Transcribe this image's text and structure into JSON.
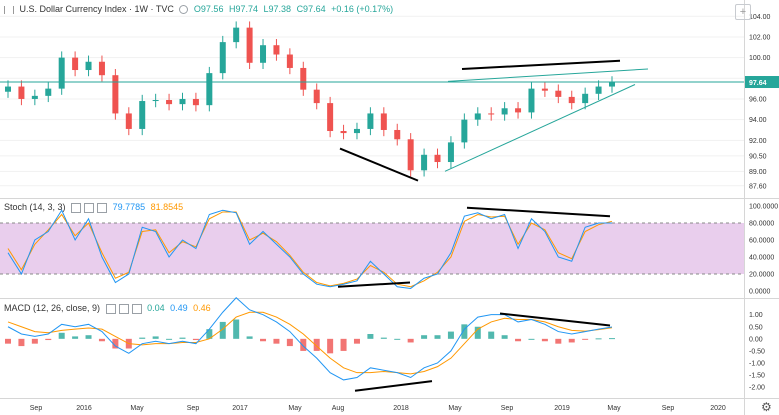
{
  "header": {
    "symbol": "U.S. Dollar Currency Index · 1W · TVC",
    "open": "O97.56",
    "high": "H97.74",
    "low": "L97.38",
    "close": "C97.64",
    "change": "+0.16 (+0.17%)"
  },
  "stoch": {
    "name": "Stoch (14, 3, 3)",
    "k": "79.7785",
    "d": "81.8545"
  },
  "macd": {
    "name": "MACD (12, 26, close, 9)",
    "hist": "0.04",
    "macd": "0.49",
    "signal": "0.46"
  },
  "colors": {
    "up": "#26a69a",
    "down": "#ef5350",
    "k": "#2196f3",
    "d": "#ff9800",
    "band": "#e1bee7",
    "trend_teal": "#26a69a",
    "trend_black": "#000000",
    "price_label": "#26a69a"
  },
  "chart_data": [
    {
      "type": "candlestick",
      "title": "U.S. Dollar Currency Index",
      "price_axis": {
        "ticks": [
          "104.00",
          "102.00",
          "100.00",
          "98.00",
          "96.00",
          "94.00",
          "92.00",
          "90.50",
          "89.00",
          "87.60"
        ],
        "range": [
          87.0,
          104.8
        ]
      },
      "last_price": "97.64",
      "x_ticks": [
        "Sep",
        "2016",
        "May",
        "Sep",
        "2017",
        "May",
        "Aug",
        "2018",
        "May",
        "Sep",
        "2019",
        "May",
        "Sep",
        "2020"
      ],
      "x": [
        "2015-07",
        "2015-08",
        "2015-09",
        "2015-10",
        "2015-11",
        "2015-12",
        "2016-01",
        "2016-02",
        "2016-03",
        "2016-04",
        "2016-05",
        "2016-06",
        "2016-07",
        "2016-08",
        "2016-09",
        "2016-10",
        "2016-11",
        "2016-12",
        "2017-01",
        "2017-02",
        "2017-03",
        "2017-04",
        "2017-05",
        "2017-06",
        "2017-07",
        "2017-08",
        "2017-09",
        "2017-10",
        "2017-11",
        "2017-12",
        "2018-01",
        "2018-02",
        "2018-03",
        "2018-04",
        "2018-05",
        "2018-06",
        "2018-07",
        "2018-08",
        "2018-09",
        "2018-10",
        "2018-11",
        "2018-12",
        "2019-01",
        "2019-02",
        "2019-03",
        "2019-04"
      ],
      "close": [
        97.2,
        96.0,
        96.3,
        97.0,
        100.0,
        98.8,
        99.6,
        98.3,
        94.6,
        93.1,
        95.8,
        95.9,
        95.5,
        96.0,
        95.4,
        98.5,
        101.5,
        102.9,
        99.5,
        101.2,
        100.3,
        99.0,
        96.9,
        95.6,
        92.9,
        92.7,
        93.1,
        94.6,
        93.0,
        92.1,
        89.1,
        90.6,
        89.9,
        91.8,
        94.0,
        94.6,
        94.5,
        95.1,
        94.7,
        97.0,
        96.8,
        96.2,
        95.6,
        96.5,
        97.2,
        97.6
      ]
    },
    {
      "type": "line",
      "title": "Stoch (14, 3, 3)",
      "y_ticks": [
        "100.0000",
        "80.0000",
        "60.0000",
        "40.0000",
        "20.0000",
        "0.0000"
      ],
      "band": [
        20,
        80
      ],
      "series": [
        {
          "name": "%K",
          "values": [
            45,
            20,
            60,
            70,
            95,
            60,
            85,
            40,
            10,
            20,
            75,
            70,
            40,
            60,
            50,
            90,
            95,
            92,
            55,
            70,
            55,
            40,
            20,
            8,
            5,
            8,
            12,
            35,
            20,
            5,
            3,
            15,
            20,
            45,
            88,
            92,
            85,
            90,
            50,
            85,
            70,
            40,
            35,
            75,
            80,
            80
          ]
        },
        {
          "name": "%D",
          "values": [
            50,
            25,
            55,
            72,
            90,
            65,
            80,
            45,
            15,
            22,
            70,
            72,
            45,
            58,
            52,
            85,
            93,
            93,
            60,
            68,
            58,
            42,
            22,
            10,
            6,
            9,
            14,
            30,
            22,
            8,
            5,
            12,
            22,
            40,
            82,
            90,
            87,
            88,
            55,
            80,
            72,
            45,
            38,
            70,
            78,
            82
          ]
        }
      ]
    },
    {
      "type": "line",
      "title": "MACD (12, 26, close, 9)",
      "y_ticks": [
        "1.00",
        "0.50",
        "0.00",
        "-0.50",
        "-1.00",
        "-1.50",
        "-2.00"
      ],
      "series": [
        {
          "name": "MACD",
          "values": [
            0.5,
            0.2,
            0.1,
            0.2,
            0.6,
            0.5,
            0.6,
            0.3,
            -0.3,
            -0.6,
            -0.2,
            -0.1,
            -0.2,
            -0.1,
            -0.2,
            0.4,
            1.1,
            1.7,
            1.2,
            1.0,
            0.7,
            0.3,
            -0.3,
            -0.8,
            -1.4,
            -1.7,
            -1.6,
            -1.2,
            -1.3,
            -1.4,
            -1.6,
            -1.2,
            -1.0,
            -0.5,
            0.4,
            0.9,
            1.0,
            1.0,
            0.7,
            0.8,
            0.6,
            0.3,
            0.2,
            0.3,
            0.4,
            0.49
          ]
        },
        {
          "name": "Signal",
          "values": [
            0.7,
            0.5,
            0.3,
            0.25,
            0.35,
            0.4,
            0.45,
            0.4,
            0.1,
            -0.2,
            -0.25,
            -0.2,
            -0.2,
            -0.15,
            -0.15,
            0.0,
            0.4,
            0.9,
            1.1,
            1.1,
            0.9,
            0.6,
            0.2,
            -0.3,
            -0.8,
            -1.2,
            -1.4,
            -1.4,
            -1.35,
            -1.4,
            -1.45,
            -1.35,
            -1.15,
            -0.8,
            -0.2,
            0.4,
            0.7,
            0.85,
            0.8,
            0.8,
            0.7,
            0.5,
            0.35,
            0.32,
            0.38,
            0.46
          ]
        }
      ]
    }
  ]
}
